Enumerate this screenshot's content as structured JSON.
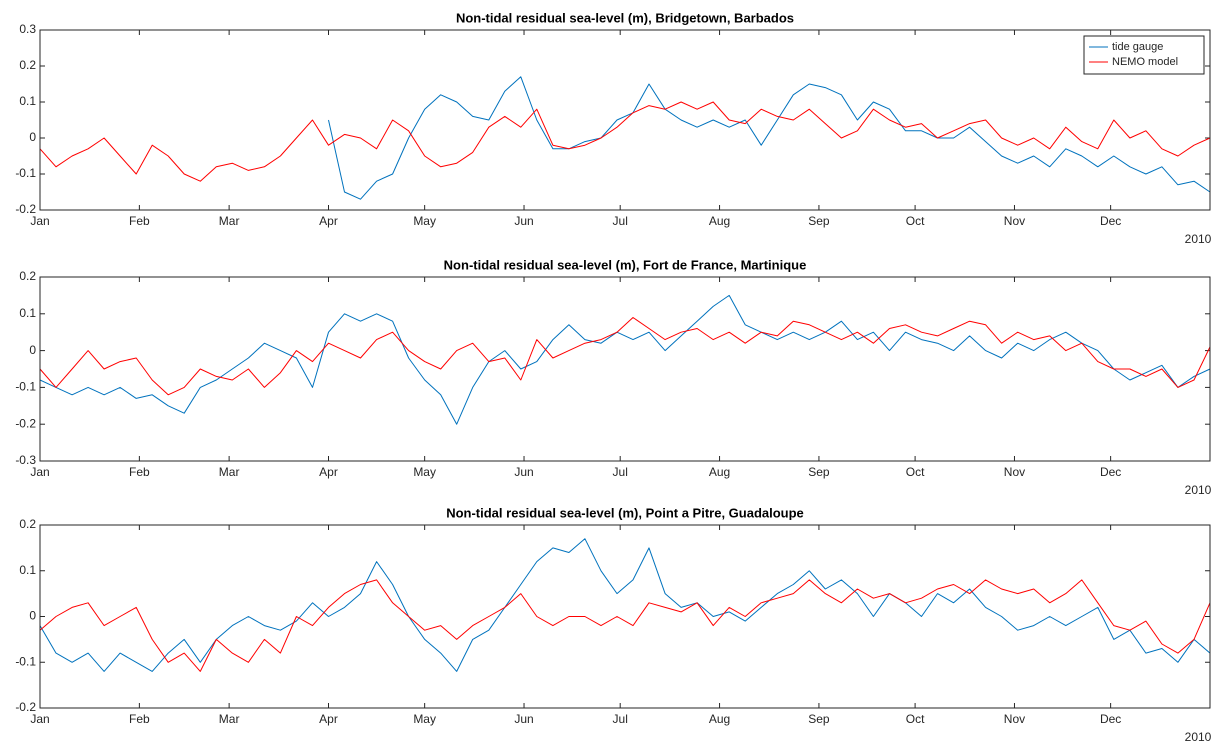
{
  "chart_data": [
    {
      "type": "line",
      "title": "Non-tidal residual sea-level (m), Bridgetown, Barbados",
      "year_label": "2010",
      "x": [
        0,
        5,
        10,
        15,
        20,
        25,
        30,
        35,
        40,
        45,
        50,
        55,
        60,
        65,
        70,
        75,
        80,
        85,
        90,
        95,
        100,
        105,
        110,
        115,
        120,
        125,
        130,
        135,
        140,
        145,
        150,
        155,
        160,
        165,
        170,
        175,
        180,
        185,
        190,
        195,
        200,
        205,
        210,
        215,
        220,
        225,
        230,
        235,
        240,
        245,
        250,
        255,
        260,
        265,
        270,
        275,
        280,
        285,
        290,
        295,
        300,
        305,
        310,
        315,
        320,
        325,
        330,
        335,
        340,
        345,
        350,
        355,
        360,
        365
      ],
      "xlim": [
        0,
        365
      ],
      "xticks": [
        {
          "value": 0,
          "label": "Jan"
        },
        {
          "value": 31,
          "label": "Feb"
        },
        {
          "value": 59,
          "label": "Mar"
        },
        {
          "value": 90,
          "label": "Apr"
        },
        {
          "value": 120,
          "label": "May"
        },
        {
          "value": 151,
          "label": "Jun"
        },
        {
          "value": 181,
          "label": "Jul"
        },
        {
          "value": 212,
          "label": "Aug"
        },
        {
          "value": 243,
          "label": "Sep"
        },
        {
          "value": 273,
          "label": "Oct"
        },
        {
          "value": 304,
          "label": "Nov"
        },
        {
          "value": 334,
          "label": "Dec"
        }
      ],
      "ylim": [
        -0.2,
        0.3
      ],
      "yticks": [
        -0.2,
        -0.1,
        0,
        0.1,
        0.2,
        0.3
      ],
      "legend": "upper right",
      "series": [
        {
          "name": "tide gauge",
          "color": "#0072bd",
          "values": [
            null,
            null,
            null,
            null,
            null,
            null,
            null,
            null,
            null,
            null,
            null,
            null,
            null,
            null,
            null,
            null,
            null,
            null,
            0.05,
            -0.15,
            -0.17,
            -0.12,
            -0.1,
            0.0,
            0.08,
            0.12,
            0.1,
            0.06,
            0.05,
            0.13,
            0.17,
            0.05,
            -0.03,
            -0.03,
            -0.01,
            0.0,
            0.05,
            0.07,
            0.15,
            0.08,
            0.05,
            0.03,
            0.05,
            0.03,
            0.05,
            -0.02,
            0.05,
            0.12,
            0.15,
            0.14,
            0.12,
            0.05,
            0.1,
            0.08,
            0.02,
            0.02,
            0.0,
            0.0,
            0.03,
            -0.01,
            -0.05,
            -0.07,
            -0.05,
            -0.08,
            -0.03,
            -0.05,
            -0.08,
            -0.05,
            -0.08,
            -0.1,
            -0.08,
            -0.13,
            -0.12,
            -0.15
          ]
        },
        {
          "name": "NEMO model",
          "color": "#ff0000",
          "values": [
            -0.03,
            -0.08,
            -0.05,
            -0.03,
            0.0,
            -0.05,
            -0.1,
            -0.02,
            -0.05,
            -0.1,
            -0.12,
            -0.08,
            -0.07,
            -0.09,
            -0.08,
            -0.05,
            0.0,
            0.05,
            -0.02,
            0.01,
            0.0,
            -0.03,
            0.05,
            0.02,
            -0.05,
            -0.08,
            -0.07,
            -0.04,
            0.03,
            0.06,
            0.03,
            0.08,
            -0.02,
            -0.03,
            -0.02,
            0.0,
            0.03,
            0.07,
            0.09,
            0.08,
            0.1,
            0.08,
            0.1,
            0.05,
            0.04,
            0.08,
            0.06,
            0.05,
            0.08,
            0.04,
            0.0,
            0.02,
            0.08,
            0.05,
            0.03,
            0.04,
            0.0,
            0.02,
            0.04,
            0.05,
            0.0,
            -0.02,
            0.0,
            -0.03,
            0.03,
            -0.01,
            -0.03,
            0.05,
            0.0,
            0.02,
            -0.03,
            -0.05,
            -0.02,
            0.0
          ]
        }
      ]
    },
    {
      "type": "line",
      "title": "Non-tidal residual sea-level (m), Fort de France, Martinique",
      "year_label": "2010",
      "x": [
        0,
        5,
        10,
        15,
        20,
        25,
        30,
        35,
        40,
        45,
        50,
        55,
        60,
        65,
        70,
        75,
        80,
        85,
        90,
        95,
        100,
        105,
        110,
        115,
        120,
        125,
        130,
        135,
        140,
        145,
        150,
        155,
        160,
        165,
        170,
        175,
        180,
        185,
        190,
        195,
        200,
        205,
        210,
        215,
        220,
        225,
        230,
        235,
        240,
        245,
        250,
        255,
        260,
        265,
        270,
        275,
        280,
        285,
        290,
        295,
        300,
        305,
        310,
        315,
        320,
        325,
        330,
        335,
        340,
        345,
        350,
        355,
        360,
        365
      ],
      "xlim": [
        0,
        365
      ],
      "xticks": [
        {
          "value": 0,
          "label": "Jan"
        },
        {
          "value": 31,
          "label": "Feb"
        },
        {
          "value": 59,
          "label": "Mar"
        },
        {
          "value": 90,
          "label": "Apr"
        },
        {
          "value": 120,
          "label": "May"
        },
        {
          "value": 151,
          "label": "Jun"
        },
        {
          "value": 181,
          "label": "Jul"
        },
        {
          "value": 212,
          "label": "Aug"
        },
        {
          "value": 243,
          "label": "Sep"
        },
        {
          "value": 273,
          "label": "Oct"
        },
        {
          "value": 304,
          "label": "Nov"
        },
        {
          "value": 334,
          "label": "Dec"
        }
      ],
      "ylim": [
        -0.3,
        0.2
      ],
      "yticks": [
        -0.3,
        -0.2,
        -0.1,
        0,
        0.1,
        0.2
      ],
      "series": [
        {
          "color": "#0072bd",
          "values": [
            -0.08,
            -0.1,
            -0.12,
            -0.1,
            -0.12,
            -0.1,
            -0.13,
            -0.12,
            -0.15,
            -0.17,
            -0.1,
            -0.08,
            -0.05,
            -0.02,
            0.02,
            0.0,
            -0.02,
            -0.1,
            0.05,
            0.1,
            0.08,
            0.1,
            0.08,
            -0.02,
            -0.08,
            -0.12,
            -0.2,
            -0.1,
            -0.03,
            0.0,
            -0.05,
            -0.03,
            0.03,
            0.07,
            0.03,
            0.02,
            0.05,
            0.03,
            0.05,
            0.0,
            0.04,
            0.08,
            0.12,
            0.15,
            0.07,
            0.05,
            0.03,
            0.05,
            0.03,
            0.05,
            0.08,
            0.03,
            0.05,
            0.0,
            0.05,
            0.03,
            0.02,
            0.0,
            0.04,
            0.0,
            -0.02,
            0.02,
            0.0,
            0.03,
            0.05,
            0.02,
            0.0,
            -0.05,
            -0.08,
            -0.06,
            -0.04,
            -0.1,
            -0.07,
            -0.05
          ]
        },
        {
          "color": "#ff0000",
          "values": [
            -0.05,
            -0.1,
            -0.05,
            0.0,
            -0.05,
            -0.03,
            -0.02,
            -0.08,
            -0.12,
            -0.1,
            -0.05,
            -0.07,
            -0.08,
            -0.05,
            -0.1,
            -0.06,
            0.0,
            -0.03,
            0.02,
            0.0,
            -0.02,
            0.03,
            0.05,
            0.0,
            -0.03,
            -0.05,
            0.0,
            0.02,
            -0.03,
            -0.02,
            -0.08,
            0.03,
            -0.02,
            0.0,
            0.02,
            0.03,
            0.05,
            0.09,
            0.06,
            0.03,
            0.05,
            0.06,
            0.03,
            0.05,
            0.02,
            0.05,
            0.04,
            0.08,
            0.07,
            0.05,
            0.03,
            0.05,
            0.02,
            0.06,
            0.07,
            0.05,
            0.04,
            0.06,
            0.08,
            0.07,
            0.02,
            0.05,
            0.03,
            0.04,
            0.0,
            0.02,
            -0.03,
            -0.05,
            -0.05,
            -0.07,
            -0.05,
            -0.1,
            -0.08,
            0.01
          ]
        }
      ]
    },
    {
      "type": "line",
      "title": "Non-tidal residual sea-level (m), Point a Pitre, Guadaloupe",
      "year_label": "2010",
      "x": [
        0,
        5,
        10,
        15,
        20,
        25,
        30,
        35,
        40,
        45,
        50,
        55,
        60,
        65,
        70,
        75,
        80,
        85,
        90,
        95,
        100,
        105,
        110,
        115,
        120,
        125,
        130,
        135,
        140,
        145,
        150,
        155,
        160,
        165,
        170,
        175,
        180,
        185,
        190,
        195,
        200,
        205,
        210,
        215,
        220,
        225,
        230,
        235,
        240,
        245,
        250,
        255,
        260,
        265,
        270,
        275,
        280,
        285,
        290,
        295,
        300,
        305,
        310,
        315,
        320,
        325,
        330,
        335,
        340,
        345,
        350,
        355,
        360,
        365
      ],
      "xlim": [
        0,
        365
      ],
      "xticks": [
        {
          "value": 0,
          "label": "Jan"
        },
        {
          "value": 31,
          "label": "Feb"
        },
        {
          "value": 59,
          "label": "Mar"
        },
        {
          "value": 90,
          "label": "Apr"
        },
        {
          "value": 120,
          "label": "May"
        },
        {
          "value": 151,
          "label": "Jun"
        },
        {
          "value": 181,
          "label": "Jul"
        },
        {
          "value": 212,
          "label": "Aug"
        },
        {
          "value": 243,
          "label": "Sep"
        },
        {
          "value": 273,
          "label": "Oct"
        },
        {
          "value": 304,
          "label": "Nov"
        },
        {
          "value": 334,
          "label": "Dec"
        }
      ],
      "ylim": [
        -0.2,
        0.2
      ],
      "yticks": [
        -0.2,
        -0.1,
        0,
        0.1,
        0.2
      ],
      "series": [
        {
          "color": "#0072bd",
          "values": [
            -0.02,
            -0.08,
            -0.1,
            -0.08,
            -0.12,
            -0.08,
            -0.1,
            -0.12,
            -0.08,
            -0.05,
            -0.1,
            -0.05,
            -0.02,
            0.0,
            -0.02,
            -0.03,
            -0.01,
            0.03,
            0.0,
            0.02,
            0.05,
            0.12,
            0.07,
            0.0,
            -0.05,
            -0.08,
            -0.12,
            -0.05,
            -0.03,
            0.02,
            0.07,
            0.12,
            0.15,
            0.14,
            0.17,
            0.1,
            0.05,
            0.08,
            0.15,
            0.05,
            0.02,
            0.03,
            0.0,
            0.01,
            -0.01,
            0.02,
            0.05,
            0.07,
            0.1,
            0.06,
            0.08,
            0.05,
            0.0,
            0.05,
            0.03,
            0.0,
            0.05,
            0.03,
            0.06,
            0.02,
            0.0,
            -0.03,
            -0.02,
            0.0,
            -0.02,
            0.0,
            0.02,
            -0.05,
            -0.03,
            -0.08,
            -0.07,
            -0.1,
            -0.05,
            -0.08
          ]
        },
        {
          "color": "#ff0000",
          "values": [
            -0.03,
            0.0,
            0.02,
            0.03,
            -0.02,
            0.0,
            0.02,
            -0.05,
            -0.1,
            -0.08,
            -0.12,
            -0.05,
            -0.08,
            -0.1,
            -0.05,
            -0.08,
            0.0,
            -0.02,
            0.02,
            0.05,
            0.07,
            0.08,
            0.03,
            0.0,
            -0.03,
            -0.02,
            -0.05,
            -0.02,
            0.0,
            0.02,
            0.05,
            0.0,
            -0.02,
            0.0,
            0.0,
            -0.02,
            0.0,
            -0.02,
            0.03,
            0.02,
            0.01,
            0.03,
            -0.02,
            0.02,
            0.0,
            0.03,
            0.04,
            0.05,
            0.08,
            0.05,
            0.03,
            0.06,
            0.04,
            0.05,
            0.03,
            0.04,
            0.06,
            0.07,
            0.05,
            0.08,
            0.06,
            0.05,
            0.06,
            0.03,
            0.05,
            0.08,
            0.03,
            -0.02,
            -0.03,
            -0.01,
            -0.06,
            -0.08,
            -0.05,
            0.03
          ]
        }
      ]
    }
  ]
}
